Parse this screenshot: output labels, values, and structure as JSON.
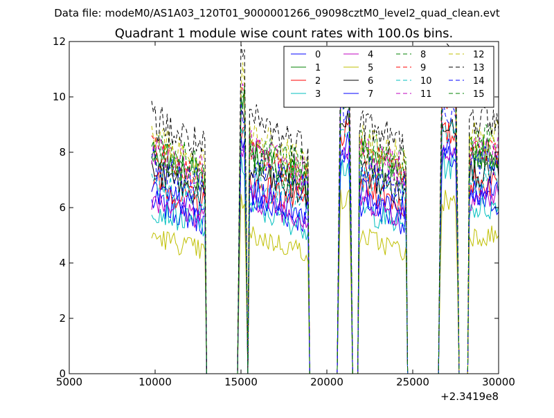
{
  "page": {
    "supertitle": "Data file: modeM0/AS1A03_120T01_9000001266_09098cztM0_level2_quad_clean.evt"
  },
  "chart_data": {
    "type": "line",
    "title": "Quadrant 1 module wise count rates with 100.0s bins.",
    "xlabel": "",
    "ylabel": "",
    "x_offset_label": "+2.3419e8",
    "xlim": [
      5000,
      30000
    ],
    "ylim": [
      0,
      12
    ],
    "xticks": [
      5000,
      10000,
      15000,
      20000,
      25000,
      30000
    ],
    "yticks": [
      0,
      2,
      4,
      6,
      8,
      10,
      12
    ],
    "grid": false,
    "legend_position": "top-right",
    "bin_size_s": 100,
    "segments": [
      {
        "start": 9800,
        "end": 12900
      },
      {
        "start": 14900,
        "end": 15300
      },
      {
        "start": 15500,
        "end": 18900
      },
      {
        "start": 20700,
        "end": 21400
      },
      {
        "start": 21900,
        "end": 24600
      },
      {
        "start": 26600,
        "end": 27600
      },
      {
        "start": 28300,
        "end": 30000
      }
    ],
    "series": [
      {
        "name": "0",
        "color": "#0000ff",
        "dash": "solid",
        "level": 6.2
      },
      {
        "name": "1",
        "color": "#008000",
        "dash": "solid",
        "level": 8.0
      },
      {
        "name": "2",
        "color": "#ff0000",
        "dash": "solid",
        "level": 6.9
      },
      {
        "name": "3",
        "color": "#00bfbf",
        "dash": "solid",
        "level": 6.0
      },
      {
        "name": "4",
        "color": "#bf00bf",
        "dash": "solid",
        "level": 6.4
      },
      {
        "name": "5",
        "color": "#bfbf00",
        "dash": "solid",
        "level": 5.0
      },
      {
        "name": "6",
        "color": "#000000",
        "dash": "solid",
        "level": 7.3
      },
      {
        "name": "7",
        "color": "#0000ff",
        "dash": "solid",
        "level": 6.6
      },
      {
        "name": "8",
        "color": "#008000",
        "dash": "dashed",
        "level": 8.4
      },
      {
        "name": "9",
        "color": "#ff0000",
        "dash": "dashed",
        "level": 8.0
      },
      {
        "name": "10",
        "color": "#00bfbf",
        "dash": "dashed",
        "level": 7.0
      },
      {
        "name": "11",
        "color": "#bf00bf",
        "dash": "dashed",
        "level": 8.2
      },
      {
        "name": "12",
        "color": "#bfbf00",
        "dash": "dashed",
        "level": 8.6
      },
      {
        "name": "13",
        "color": "#000000",
        "dash": "dashed",
        "level": 9.2
      },
      {
        "name": "14",
        "color": "#0000ff",
        "dash": "dashed",
        "level": 7.6
      },
      {
        "name": "15",
        "color": "#008000",
        "dash": "dashed",
        "level": 7.9
      }
    ]
  }
}
